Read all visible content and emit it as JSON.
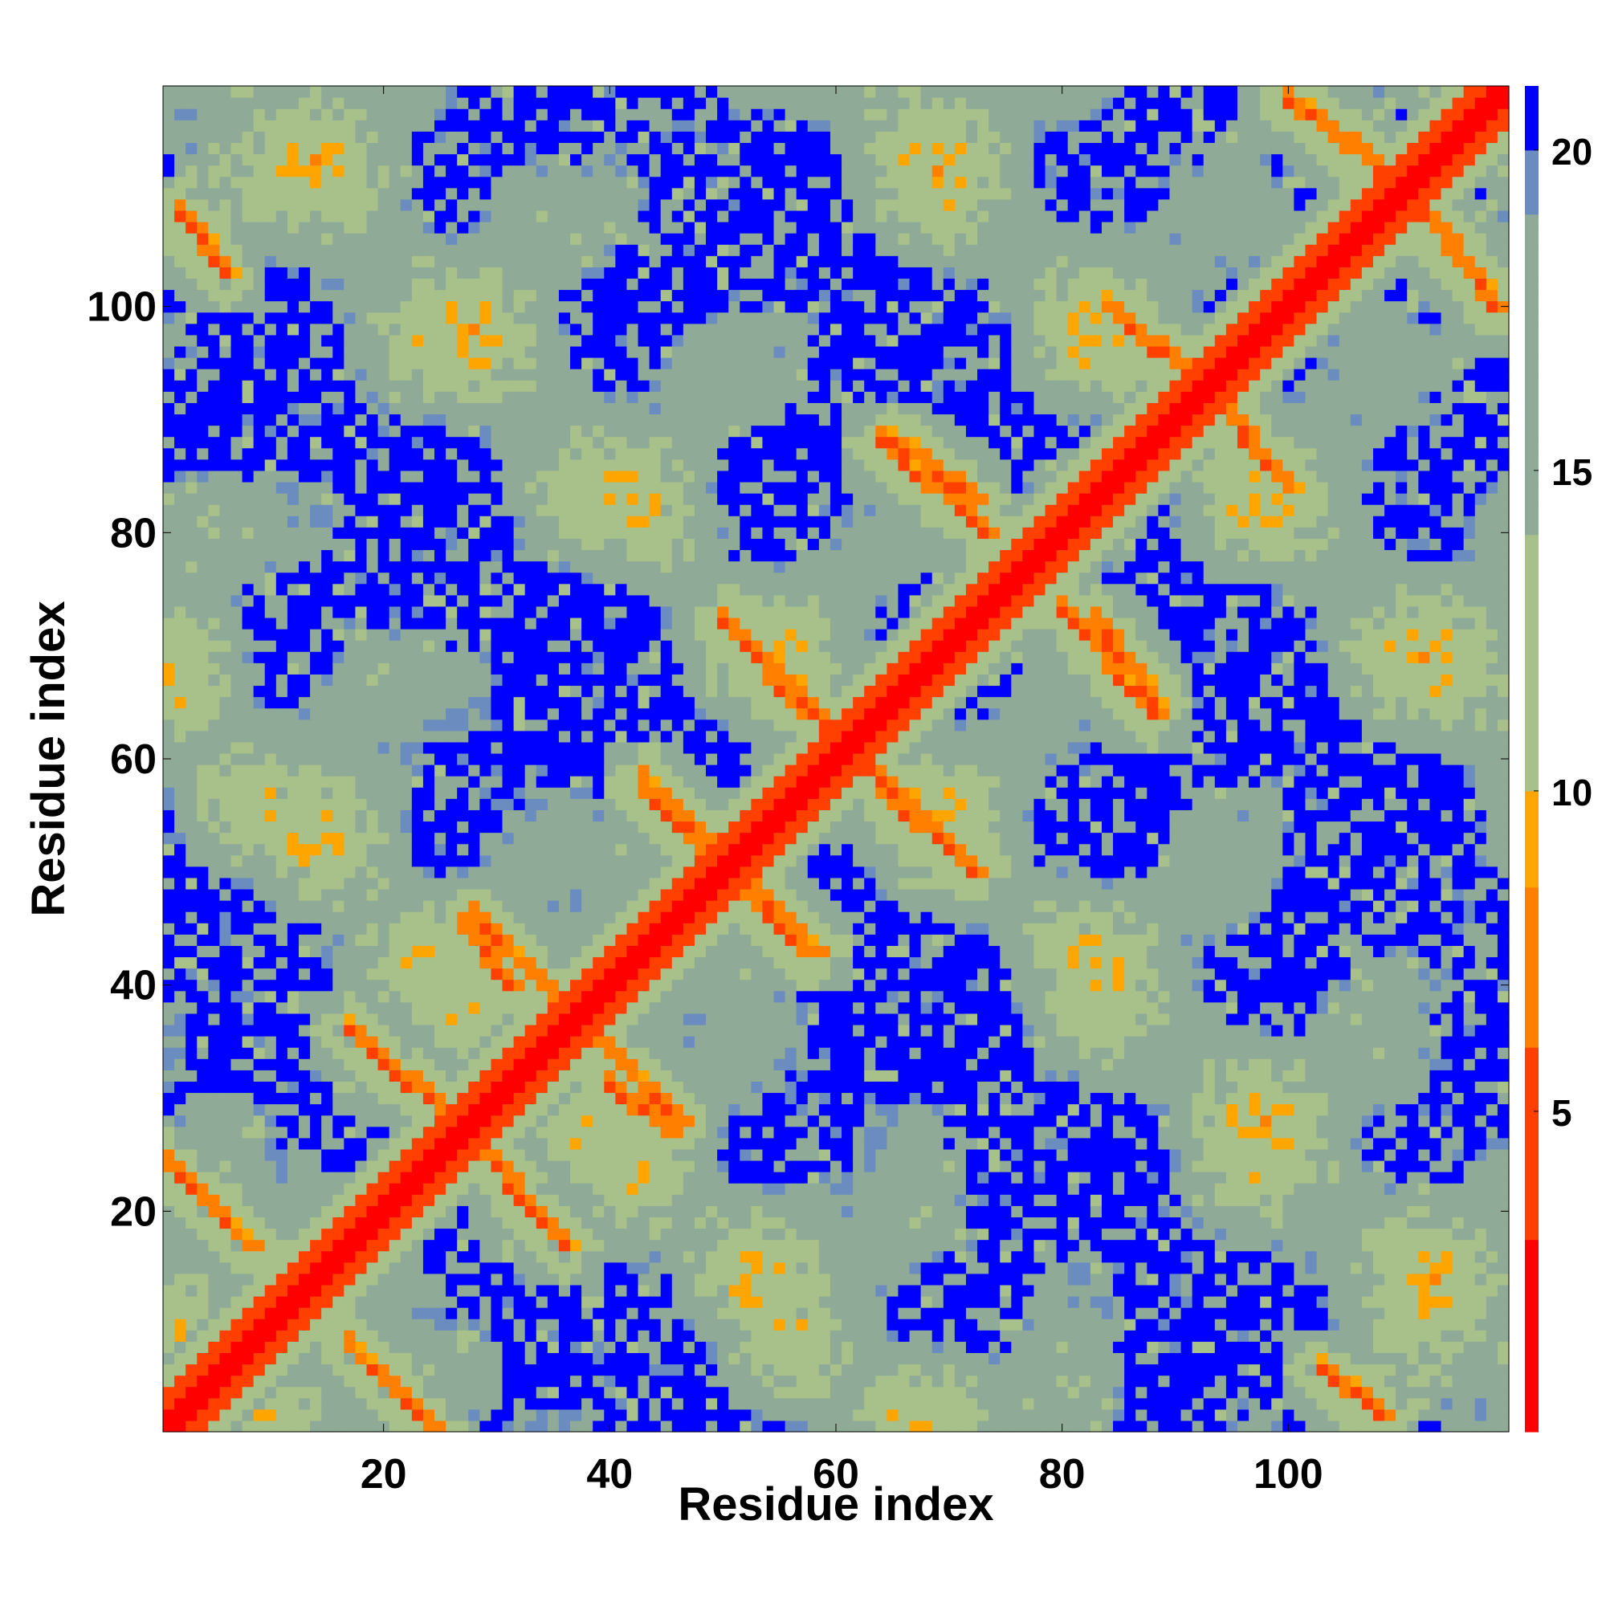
{
  "chart_data": {
    "type": "heatmap",
    "title": "",
    "xlabel": "Residue index",
    "ylabel": "Residue index",
    "n_residues": 119,
    "xlim": [
      0.5,
      119.5
    ],
    "ylim": [
      0.5,
      119.5
    ],
    "x_ticks": [
      20,
      40,
      60,
      80,
      100
    ],
    "y_ticks": [
      20,
      40,
      60,
      80,
      100
    ],
    "colorbar": {
      "ticks": [
        5,
        10,
        15,
        20
      ],
      "range": [
        0,
        21
      ],
      "colors": [
        "#ff0000",
        "#ff4000",
        "#ff8000",
        "#ffa500",
        "#a8c08a",
        "#8faa96",
        "#6b8cbf",
        "#0000ff"
      ],
      "stops": [
        0,
        3,
        6,
        8.5,
        10,
        14,
        19,
        20
      ]
    },
    "matrix": "symmetric pairwise distance map (Angstrom), distances capped at 21",
    "contact_features": [
      {
        "kind": "diagonal",
        "description": "self/neighbour contacts",
        "value": 0.5
      },
      {
        "kind": "antiparallel",
        "from": [
          17,
          36
        ],
        "to": [
          28,
          26
        ]
      },
      {
        "kind": "antiparallel",
        "from": [
          28,
          46
        ],
        "to": [
          36,
          38
        ]
      },
      {
        "kind": "antiparallel",
        "from": [
          43,
          58
        ],
        "to": [
          49,
          52
        ]
      },
      {
        "kind": "antiparallel",
        "from": [
          52,
          70
        ],
        "to": [
          60,
          62
        ]
      },
      {
        "kind": "antiparallel",
        "from": [
          64,
          88
        ],
        "to": [
          73,
          80
        ]
      },
      {
        "kind": "antiparallel",
        "from": [
          83,
          72
        ],
        "to": [
          88,
          65
        ]
      },
      {
        "kind": "antiparallel",
        "from": [
          84,
          100
        ],
        "to": [
          94,
          91
        ]
      },
      {
        "kind": "antiparallel",
        "from": [
          100,
          118
        ],
        "to": [
          108,
          112
        ]
      },
      {
        "kind": "parallel",
        "from": [
          1,
          24
        ],
        "to": [
          8,
          17
        ]
      },
      {
        "kind": "parallel",
        "from": [
          2,
          108
        ],
        "to": [
          6,
          103
        ]
      },
      {
        "kind": "parallel",
        "from": [
          40,
          31
        ],
        "to": [
          45,
          27
        ]
      },
      {
        "kind": "parallel",
        "from": [
          50,
          50
        ],
        "to": [
          57,
          43
        ]
      },
      {
        "kind": "parallel",
        "from": [
          64,
          57
        ],
        "to": [
          72,
          50
        ]
      }
    ]
  },
  "colors": {
    "far": "#0000ff",
    "near": "#ff0000",
    "mid": "#a8c08a"
  }
}
